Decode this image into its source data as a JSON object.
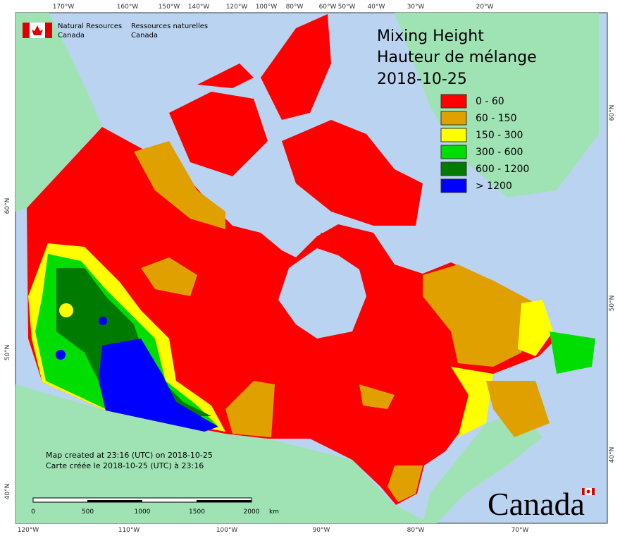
{
  "header": {
    "org_en": [
      "Natural Resources",
      "Canada"
    ],
    "org_fr": [
      "Ressources naturelles",
      "Canada"
    ]
  },
  "title": [
    "Mixing Height",
    "Hauteur de mélange",
    "2018-10-25"
  ],
  "legend": [
    {
      "label": "0 - 60",
      "color": "#ff0000"
    },
    {
      "label": "60 - 150",
      "color": "#e0a000"
    },
    {
      "label": "150 - 300",
      "color": "#ffff00"
    },
    {
      "label": "300 - 600",
      "color": "#00dd00"
    },
    {
      "label": "600 - 1200",
      "color": "#007a00"
    },
    {
      "label": "> 1200",
      "color": "#0000ff"
    }
  ],
  "graticule": {
    "top": [
      "170°W",
      "160°W",
      "150°W",
      "140°W",
      "120°W",
      "100°W",
      "80°W",
      "60°W",
      "50°W",
      "40°W",
      "30°W",
      "20°W"
    ],
    "bottom": [
      "120°W",
      "110°W",
      "100°W",
      "90°W",
      "80°W",
      "70°W"
    ],
    "left": [
      "60°N",
      "50°N",
      "40°N"
    ],
    "right": [
      "60°N",
      "50°N",
      "40°N"
    ]
  },
  "scale": {
    "ticks": [
      "0",
      "500",
      "1000",
      "1500",
      "2000"
    ],
    "unit": "km"
  },
  "footer": [
    "Map created at 23:16 (UTC) on 2018-10-25",
    "Carte créée le 2018-10-25 (UTC) à 23:16"
  ],
  "wordmark": "Canada"
}
